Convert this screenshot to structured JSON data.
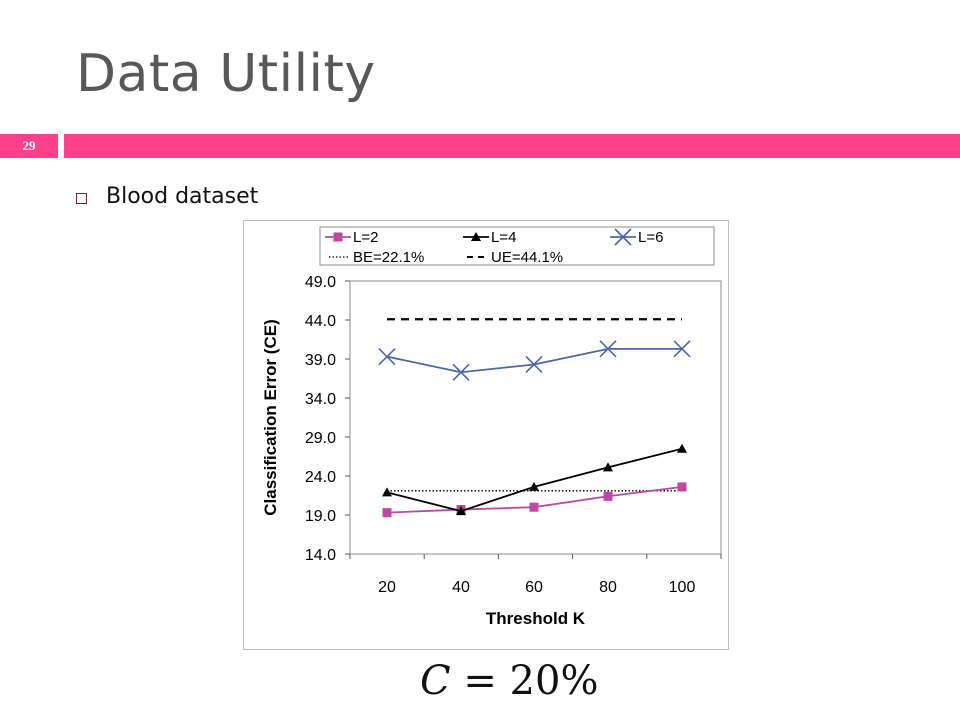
{
  "slide": {
    "title": "Data Utility",
    "page_number": "29",
    "bullet": "Blood dataset",
    "formula_var": "C",
    "formula_rest": " = 20%",
    "accent_color": "#ff3f8a"
  },
  "chart_data": {
    "type": "line",
    "categories": [
      "20",
      "40",
      "60",
      "80",
      "100"
    ],
    "xlabel": "Threshold K",
    "ylabel": "Classification Error (CE)",
    "ylim": [
      14.0,
      49.0
    ],
    "yticks": [
      "14.0",
      "19.0",
      "24.0",
      "29.0",
      "34.0",
      "39.0",
      "44.0",
      "49.0"
    ],
    "grid": false,
    "legend_position": "top",
    "series": [
      {
        "name": "L=2",
        "values": [
          19.3,
          19.7,
          20.0,
          21.4,
          22.6
        ],
        "color": "#c0479f",
        "marker": "square"
      },
      {
        "name": "L=4",
        "values": [
          21.9,
          19.5,
          22.6,
          25.1,
          27.5
        ],
        "color": "#000000",
        "marker": "triangle"
      },
      {
        "name": "L=6",
        "values": [
          39.3,
          37.3,
          38.3,
          40.3,
          40.3
        ],
        "color": "#4a66b0",
        "marker": "x"
      }
    ],
    "reference_lines": [
      {
        "name": "BE=22.1%",
        "value": 22.1,
        "style": "dotted",
        "color": "#000000"
      },
      {
        "name": "UE=44.1%",
        "value": 44.1,
        "style": "dashed",
        "color": "#000000"
      }
    ]
  }
}
